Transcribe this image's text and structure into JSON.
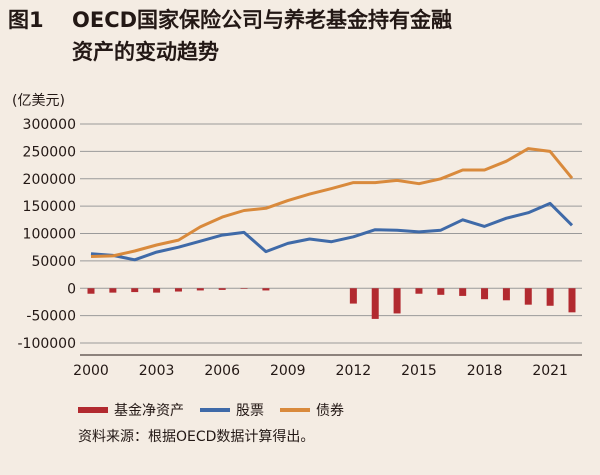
{
  "header": {
    "figure_label": "图1",
    "title_line1": "OECD国家保险公司与养老基金持有金融",
    "title_line2": "资产的变动趋势"
  },
  "unit_label": "(亿美元)",
  "source": "资料来源：根据OECD数据计算得出。",
  "colors": {
    "fund": "#b22a30",
    "stocks": "#3f6aa8",
    "bonds": "#d98a3c",
    "grid": "#9a9a9a"
  },
  "chart_data": {
    "type": "line",
    "title": "OECD国家保险公司与养老基金持有金融资产的变动趋势",
    "ylabel": "(亿美元)",
    "ylim": [
      -100000,
      300000
    ],
    "yticks": [
      300000,
      250000,
      200000,
      150000,
      100000,
      50000,
      0,
      -50000,
      -100000
    ],
    "ytick_labels": [
      "300000",
      "250000",
      "200000",
      "150000",
      "100000",
      "50000",
      "0",
      "-50000",
      "-100000"
    ],
    "x": [
      2000,
      2001,
      2002,
      2003,
      2004,
      2005,
      2006,
      2007,
      2008,
      2009,
      2010,
      2011,
      2012,
      2013,
      2014,
      2015,
      2016,
      2017,
      2018,
      2019,
      2020,
      2021,
      2022
    ],
    "xtick_labels": [
      "2000",
      "2003",
      "2006",
      "2009",
      "2012",
      "2015",
      "2018",
      "2021"
    ],
    "xticks": [
      2000,
      2003,
      2006,
      2009,
      2012,
      2015,
      2018,
      2021
    ],
    "series": [
      {
        "name": "基金净资产",
        "kind": "bar",
        "values": [
          -10000,
          -8000,
          -7000,
          -8000,
          -6000,
          -4000,
          -3000,
          -1000,
          -4000,
          0,
          0,
          0,
          -28000,
          -56000,
          -46000,
          -10000,
          -12000,
          -14000,
          -20000,
          -22000,
          -30000,
          -32000,
          -44000
        ]
      },
      {
        "name": "股票",
        "kind": "line",
        "values": [
          63000,
          60000,
          52000,
          66000,
          75000,
          86000,
          97000,
          102000,
          67000,
          82000,
          90000,
          85000,
          94000,
          107000,
          106000,
          103000,
          106000,
          125000,
          113000,
          128000,
          138000,
          155000,
          115000
        ]
      },
      {
        "name": "债券",
        "kind": "line",
        "values": [
          58000,
          59000,
          68000,
          79000,
          88000,
          112000,
          130000,
          142000,
          146000,
          160000,
          172000,
          182000,
          193000,
          193000,
          197000,
          191000,
          200000,
          216000,
          216000,
          232000,
          255000,
          250000,
          201000
        ]
      }
    ]
  }
}
